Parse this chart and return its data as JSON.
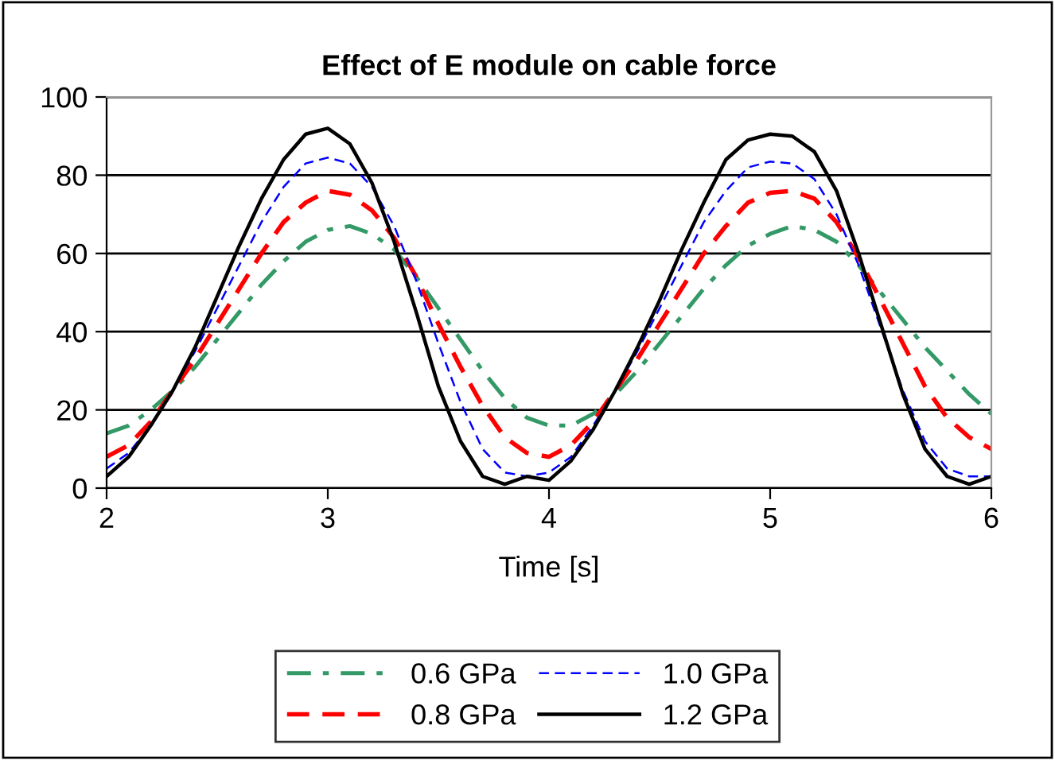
{
  "chart_data": {
    "type": "line",
    "title": "Effect of E module on cable force",
    "xlabel": "Time [s]",
    "x": [
      2.0,
      2.1,
      2.2,
      2.3,
      2.4,
      2.5,
      2.6,
      2.7,
      2.8,
      2.9,
      3.0,
      3.1,
      3.2,
      3.3,
      3.4,
      3.5,
      3.6,
      3.7,
      3.8,
      3.9,
      4.0,
      4.1,
      4.2,
      4.3,
      4.4,
      4.5,
      4.6,
      4.7,
      4.8,
      4.9,
      5.0,
      5.1,
      5.2,
      5.3,
      5.4,
      5.5,
      5.6,
      5.7,
      5.8,
      5.9,
      6.0
    ],
    "series": [
      {
        "name": "0.6 GPa",
        "color": "#339966",
        "line_style": "dashdot",
        "values": [
          14,
          16,
          20,
          25,
          31,
          38,
          45,
          52,
          58,
          63,
          66,
          67,
          65,
          61,
          54,
          46,
          38,
          30,
          23,
          18,
          16,
          16,
          19,
          24,
          30,
          37,
          44,
          51,
          57,
          62,
          65,
          67,
          66,
          63,
          57,
          50,
          43,
          36,
          30,
          24,
          19
        ]
      },
      {
        "name": "0.8 GPa",
        "color": "#ff0000",
        "line_style": "dashed",
        "values": [
          8,
          11,
          17,
          25,
          33,
          42,
          51,
          60,
          68,
          73,
          76,
          75,
          71,
          64,
          54,
          42,
          31,
          21,
          13,
          9,
          8,
          11,
          17,
          25,
          33,
          42,
          51,
          60,
          67,
          73,
          75.5,
          76,
          74,
          68,
          59,
          48,
          37,
          26,
          18,
          13,
          10
        ]
      },
      {
        "name": "1.0 GPa",
        "color": "#0000ff",
        "line_style": "dashed",
        "values": [
          5,
          9,
          16,
          25,
          35,
          46,
          57,
          68,
          77,
          83,
          84.5,
          83,
          77,
          67,
          53,
          37,
          22,
          10,
          4,
          3,
          4,
          8,
          16,
          25,
          35,
          46,
          57,
          68,
          76,
          82,
          83.5,
          83,
          79,
          70,
          57,
          41,
          25,
          12,
          5,
          3,
          3
        ]
      },
      {
        "name": "1.2 GPa",
        "color": "#000000",
        "line_style": "solid",
        "values": [
          3,
          8,
          16,
          25,
          36,
          49,
          62,
          74,
          84,
          90.5,
          92,
          88,
          78,
          63,
          45,
          26,
          12,
          3,
          1,
          3,
          2,
          7,
          15,
          25,
          36,
          48,
          61,
          73,
          84,
          89,
          90.5,
          90,
          86,
          76,
          60,
          42,
          24,
          10,
          3,
          1,
          3
        ]
      }
    ],
    "xlim": [
      2,
      6
    ],
    "xticks": [
      2,
      3,
      4,
      5,
      6
    ],
    "ylim": [
      0,
      100
    ],
    "yticks": [
      0,
      20,
      40,
      60,
      80,
      100
    ],
    "grid": "y",
    "legend": "bottom"
  }
}
